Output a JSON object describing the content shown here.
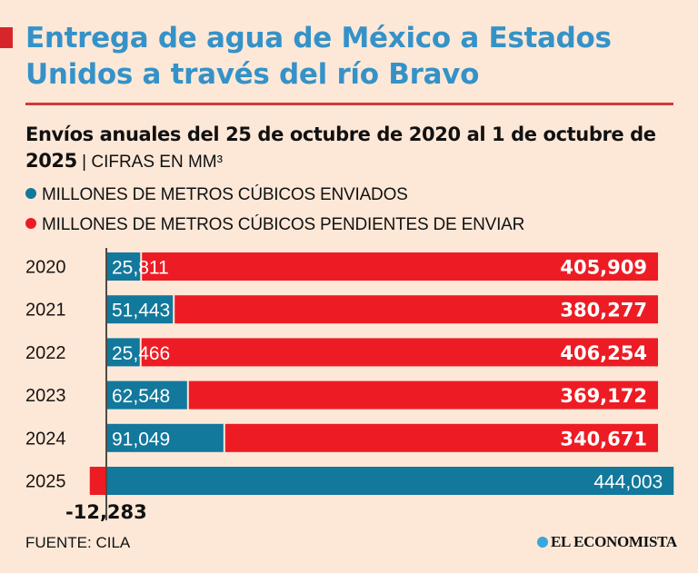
{
  "header": {
    "title": "Entrega de agua de México a Estados Unidos a través del río Bravo",
    "subtitle_bold": "Envíos anuales del 25 de octubre de 2020 al 1 de octubre de 2025",
    "subtitle_separator": " | ",
    "subtitle_unit": "CIFRAS EN MM³"
  },
  "legend": [
    {
      "label": "MILLONES DE METROS CÚBICOS ENVIADOS",
      "color": "#12789c"
    },
    {
      "label": "MILLONES DE METROS CÚBICOS PENDIENTES DE ENVIAR",
      "color": "#ed1c24"
    }
  ],
  "footer": {
    "source": "FUENTE: CILA",
    "brand": "EL ECONOMISTA",
    "brand_icon": "globe-icon"
  },
  "chart_data": {
    "type": "bar",
    "orientation": "horizontal",
    "stacked": true,
    "title": "Entrega de agua de México a Estados Unidos a través del río Bravo",
    "subtitle": "Envíos anuales del 25 de octubre de 2020 al 1 de octubre de 2025 | CIFRAS EN MM³",
    "categories": [
      "2020",
      "2021",
      "2022",
      "2023",
      "2024",
      "2025"
    ],
    "series": [
      {
        "name": "MILLONES DE METROS CÚBICOS ENVIADOS",
        "color": "#12789c",
        "values": [
          25811,
          51443,
          25466,
          62548,
          91049,
          444003
        ],
        "labels": [
          "25,811",
          "51,443",
          "25,466",
          "62,548",
          "91,049",
          "444,003"
        ]
      },
      {
        "name": "MILLONES DE METROS CÚBICOS PENDIENTES DE ENVIAR",
        "color": "#ed1c24",
        "values": [
          405909,
          380277,
          406254,
          369172,
          340671,
          -12283
        ],
        "labels": [
          "405,909",
          "380,277",
          "406,254",
          "369,172",
          "340,671",
          "-12,283"
        ]
      }
    ],
    "xlabel": "",
    "ylabel": "",
    "xlim": [
      -12283,
      444003
    ],
    "grid": false,
    "legend_position": "top-left"
  }
}
